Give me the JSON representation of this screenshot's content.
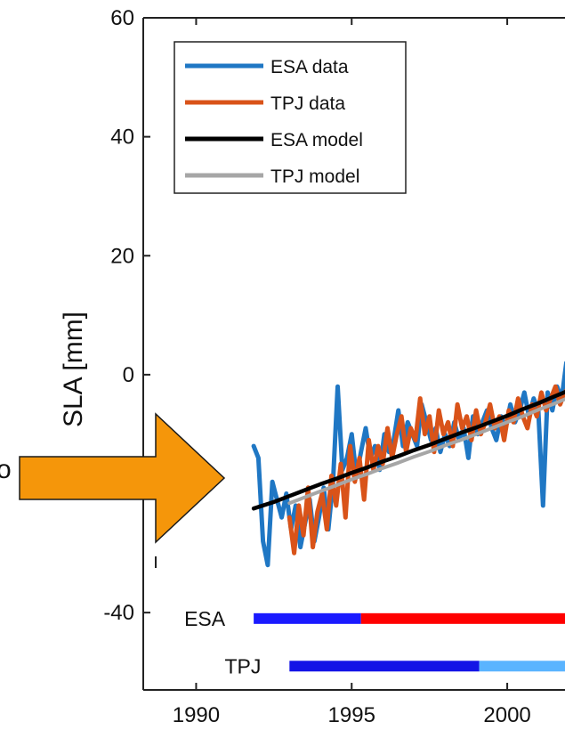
{
  "chart_data": {
    "type": "line",
    "xlabel": "",
    "ylabel": "SLA [mm]",
    "xlim": [
      1988.3,
      2002
    ],
    "ylim": [
      -53,
      60
    ],
    "xticks": [
      1990,
      1995,
      2000
    ],
    "yticks": [
      60,
      40,
      20,
      0,
      -40
    ],
    "grid": false,
    "legend_position": "top-left",
    "legend": [
      "ESA data",
      "TPJ data",
      "ESA model",
      "TPJ model"
    ],
    "series": [
      {
        "name": "ESA data",
        "color": "#1f77c4",
        "x": [
          1991.85,
          1992.0,
          1992.15,
          1992.3,
          1992.45,
          1992.6,
          1992.75,
          1992.9,
          1993.05,
          1993.2,
          1993.35,
          1993.5,
          1993.65,
          1993.8,
          1993.95,
          1994.1,
          1994.25,
          1994.4,
          1994.55,
          1994.7,
          1994.85,
          1995.0,
          1995.15,
          1995.3,
          1995.45,
          1995.6,
          1995.75,
          1995.9,
          1996.05,
          1996.2,
          1996.35,
          1996.5,
          1996.65,
          1996.8,
          1996.95,
          1997.1,
          1997.25,
          1997.4,
          1997.55,
          1997.7,
          1997.85,
          1998.0,
          1998.15,
          1998.3,
          1998.45,
          1998.6,
          1998.75,
          1998.9,
          1999.05,
          1999.2,
          1999.35,
          1999.5,
          1999.65,
          1999.8,
          1999.95,
          2000.1,
          2000.25,
          2000.4,
          2000.55,
          2000.7,
          2000.85,
          2001.0,
          2001.15,
          2001.3,
          2001.45,
          2001.6,
          2001.75,
          2001.9,
          2002.0
        ],
        "values": [
          -12,
          -14,
          -28,
          -32,
          -18,
          -21,
          -24,
          -20,
          -26,
          -22,
          -29,
          -25,
          -21,
          -28,
          -24,
          -19,
          -26,
          -18,
          -2,
          -16,
          -14,
          -10,
          -17,
          -13,
          -9,
          -14,
          -12,
          -16,
          -10,
          -13,
          -11,
          -6,
          -12,
          -8,
          -10,
          -12,
          -5,
          -8,
          -11,
          -9,
          -13,
          -10,
          -12,
          -8,
          -11,
          -9,
          -14,
          -7,
          -10,
          -8,
          -6,
          -9,
          -11,
          -7,
          -9,
          -5,
          -8,
          -6,
          -3,
          -7,
          -4,
          -6,
          -22,
          -3,
          -6,
          -2,
          -4,
          2,
          -1
        ]
      },
      {
        "name": "TPJ data",
        "color": "#d95319",
        "x": [
          1993.0,
          1993.15,
          1993.3,
          1993.45,
          1993.6,
          1993.75,
          1993.9,
          1994.05,
          1994.2,
          1994.35,
          1994.5,
          1994.65,
          1994.8,
          1994.95,
          1995.1,
          1995.25,
          1995.4,
          1995.55,
          1995.7,
          1995.85,
          1996.0,
          1996.15,
          1996.3,
          1996.45,
          1996.6,
          1996.75,
          1996.9,
          1997.05,
          1997.2,
          1997.35,
          1997.5,
          1997.65,
          1997.8,
          1997.95,
          1998.1,
          1998.25,
          1998.4,
          1998.55,
          1998.7,
          1998.85,
          1999.0,
          1999.15,
          1999.3,
          1999.45,
          1999.6,
          1999.75,
          1999.9,
          2000.05,
          2000.2,
          2000.35,
          2000.5,
          2000.65,
          2000.8,
          2000.95,
          2001.1,
          2001.25,
          2001.4,
          2001.55,
          2001.7,
          2001.85,
          2002.0
        ],
        "values": [
          -24,
          -30,
          -22,
          -27,
          -19,
          -29,
          -23,
          -20,
          -26,
          -17,
          -22,
          -15,
          -24,
          -12,
          -18,
          -14,
          -21,
          -11,
          -16,
          -12,
          -15,
          -9,
          -14,
          -10,
          -7,
          -13,
          -9,
          -11,
          -4,
          -10,
          -7,
          -13,
          -6,
          -10,
          -8,
          -12,
          -5,
          -9,
          -7,
          -11,
          -6,
          -10,
          -8,
          -5,
          -9,
          -7,
          -11,
          -6,
          -8,
          -4,
          -7,
          -9,
          -5,
          -7,
          -3,
          -6,
          -4,
          -2,
          -5,
          -3,
          -2
        ]
      },
      {
        "name": "ESA model",
        "color": "#000000",
        "x": [
          1991.85,
          1992.5,
          1993.0,
          1993.5,
          1994.0,
          1994.5,
          1995.0,
          1995.5,
          1996.0,
          1996.5,
          1997.0,
          1997.5,
          1998.0,
          1998.5,
          1999.0,
          1999.5,
          2000.0,
          2000.5,
          2001.0,
          2001.5,
          2002.0
        ],
        "values": [
          -22.5,
          -21.4,
          -20.4,
          -19.4,
          -18.4,
          -17.5,
          -16.5,
          -15.6,
          -14.6,
          -13.7,
          -12.7,
          -11.8,
          -10.8,
          -9.8,
          -8.9,
          -7.9,
          -6.9,
          -5.8,
          -4.8,
          -3.7,
          -2.6
        ]
      },
      {
        "name": "TPJ model",
        "color": "#a6a6a6",
        "x": [
          1993.0,
          1993.5,
          1994.0,
          1994.5,
          1995.0,
          1995.5,
          1996.0,
          1996.5,
          1997.0,
          1997.5,
          1998.0,
          1998.5,
          1999.0,
          1999.5,
          2000.0,
          2000.5,
          2001.0,
          2001.5,
          2002.0
        ],
        "values": [
          -21.6,
          -20.6,
          -19.6,
          -18.6,
          -17.6,
          -16.7,
          -15.7,
          -14.8,
          -13.8,
          -12.9,
          -11.9,
          -11.0,
          -10.0,
          -9.0,
          -8.0,
          -7.0,
          -5.9,
          -4.9,
          -3.8
        ]
      }
    ],
    "coverage_bars": [
      {
        "label": "ESA",
        "y": -41,
        "segments": [
          {
            "start": 1991.85,
            "end": 1995.3,
            "color": "#1a1aff"
          },
          {
            "start": 1995.3,
            "end": 2002.0,
            "color": "#ff0000"
          }
        ]
      },
      {
        "label": "TPJ",
        "y": -49,
        "segments": [
          {
            "start": 1993.0,
            "end": 1999.1,
            "color": "#1414e6"
          },
          {
            "start": 1999.1,
            "end": 2002.0,
            "color": "#5ab4ff"
          }
        ]
      }
    ]
  },
  "annotation": {
    "arrow_color": "#f5960a",
    "arrow_stroke": "#1a1a1a",
    "left_text_fragment": "o"
  }
}
